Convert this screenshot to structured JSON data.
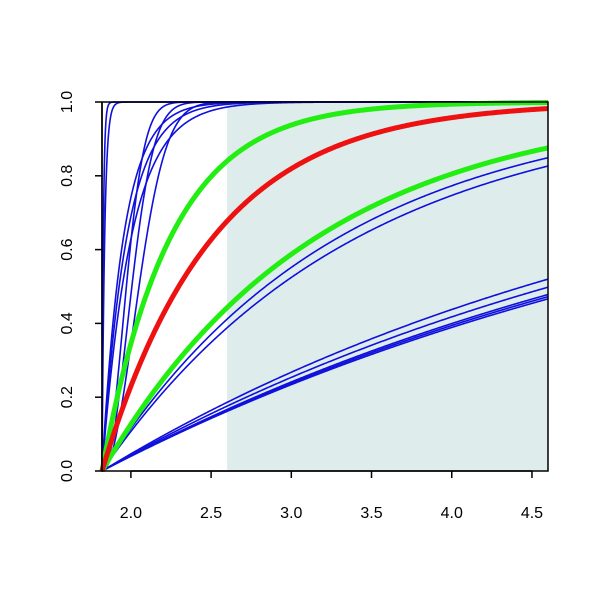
{
  "chart_data": {
    "type": "line",
    "title": "",
    "xlabel": "",
    "ylabel": "",
    "xlim": [
      1.82,
      4.6
    ],
    "ylim": [
      0,
      1
    ],
    "xticks": [
      {
        "value": 2.0,
        "label": "2.0"
      },
      {
        "value": 2.5,
        "label": "2.5"
      },
      {
        "value": 3.0,
        "label": "3.0"
      },
      {
        "value": 3.5,
        "label": "3.5"
      },
      {
        "value": 4.0,
        "label": "4.0"
      },
      {
        "value": 4.5,
        "label": "4.5"
      }
    ],
    "yticks": [
      {
        "value": 0.0,
        "label": "0.0"
      },
      {
        "value": 0.2,
        "label": "0.2"
      },
      {
        "value": 0.4,
        "label": "0.4"
      },
      {
        "value": 0.6,
        "label": "0.6"
      },
      {
        "value": 0.8,
        "label": "0.8"
      },
      {
        "value": 1.0,
        "label": "1.0"
      }
    ],
    "shaded_region": {
      "x_from": 2.6,
      "x_to": 4.6,
      "color": "#deecec"
    },
    "grid": false,
    "legend": "none",
    "x_start": 1.82,
    "series": [
      {
        "color": "#1010dd",
        "width": "thin",
        "kind": "exp",
        "k": 120,
        "p": 1
      },
      {
        "color": "#1010dd",
        "width": "thin",
        "kind": "exp",
        "k": 60,
        "p": 1
      },
      {
        "color": "#1010dd",
        "width": "thin",
        "kind": "exp",
        "k": 7.5,
        "p": 1
      },
      {
        "color": "#1010dd",
        "width": "thin",
        "kind": "exp",
        "k": 6.5,
        "p": 1
      },
      {
        "color": "#1010dd",
        "width": "thin",
        "kind": "exp",
        "k": 5.5,
        "p": 1
      },
      {
        "color": "#1010dd",
        "width": "thin",
        "kind": "exp",
        "k": 30,
        "p": 2
      },
      {
        "color": "#1010dd",
        "width": "thin",
        "kind": "exp",
        "k": 20,
        "p": 2
      },
      {
        "color": "#1010dd",
        "width": "thin",
        "kind": "exp",
        "k": 13,
        "p": 2
      },
      {
        "color": "#1010dd",
        "width": "thin",
        "kind": "exp",
        "k": 0.63,
        "p": 1
      },
      {
        "color": "#1010dd",
        "width": "thin",
        "kind": "exp",
        "k": 0.68,
        "p": 1
      },
      {
        "color": "#1010dd",
        "width": "thin",
        "kind": "lin",
        "a": 0.264
      },
      {
        "color": "#1010dd",
        "width": "thin",
        "kind": "lin",
        "a": 0.248
      },
      {
        "color": "#1010dd",
        "width": "thin",
        "kind": "lin",
        "a": 0.234
      },
      {
        "color": "#1010dd",
        "width": "thin",
        "kind": "lin",
        "a": 0.23
      },
      {
        "color": "#1010dd",
        "width": "thin",
        "kind": "lin",
        "a": 0.226
      },
      {
        "color": "#22ee11",
        "width": "thick",
        "kind": "exp",
        "k": 2.35,
        "p": 1
      },
      {
        "color": "#22ee11",
        "width": "thick",
        "kind": "exp",
        "k": 0.75,
        "p": 1
      },
      {
        "color": "#ee1111",
        "width": "thick",
        "kind": "exp",
        "k": 1.45,
        "p": 1
      }
    ]
  }
}
